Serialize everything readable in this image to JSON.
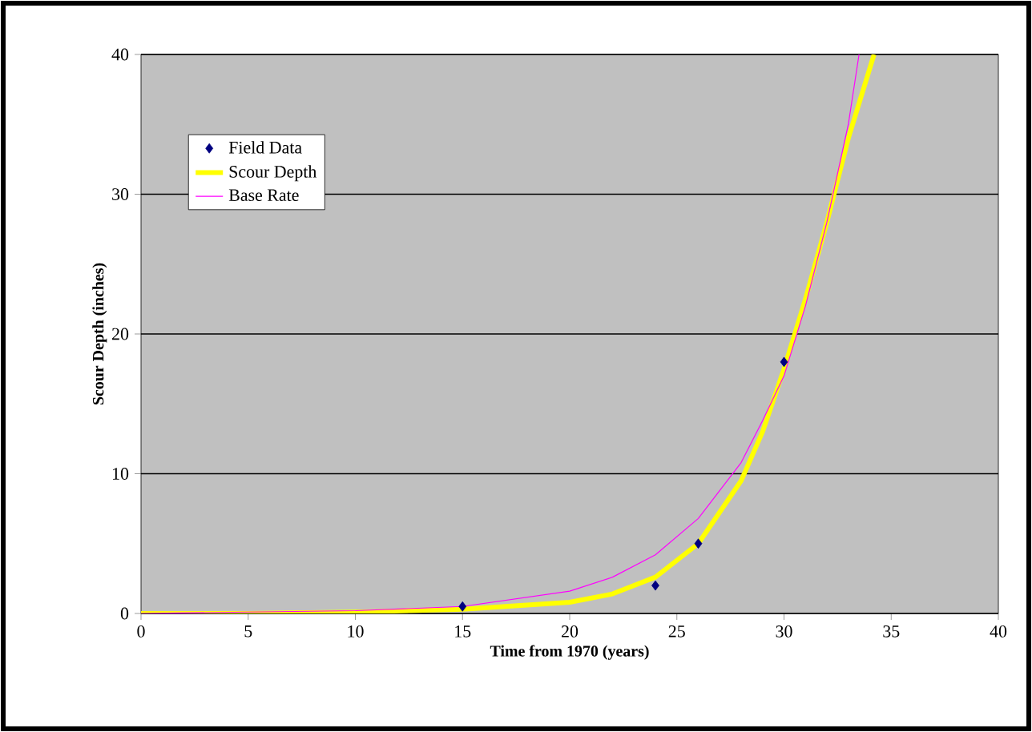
{
  "chart_data": {
    "type": "line",
    "xlabel": "Time from 1970 (years)",
    "ylabel": "Scour Depth (inches)",
    "xlim": [
      0,
      40
    ],
    "ylim": [
      0,
      40
    ],
    "xticks": [
      0,
      5,
      10,
      15,
      20,
      25,
      30,
      35,
      40
    ],
    "yticks": [
      0,
      10,
      20,
      30,
      40
    ],
    "grid": "y",
    "legend": "top left",
    "series": [
      {
        "name": "Field Data",
        "type": "scatter",
        "marker": "diamond",
        "color": "#000080",
        "x": [
          15,
          24,
          26,
          30
        ],
        "values": [
          0.5,
          2,
          5,
          18
        ]
      },
      {
        "name": "Scour Depth",
        "marker": "none",
        "color": "#ffff00",
        "x": [
          0,
          5,
          10,
          15,
          20,
          22,
          24,
          26,
          28,
          29,
          30,
          31,
          32,
          33,
          34.2
        ],
        "values": [
          0,
          0,
          0.1,
          0.3,
          0.8,
          1.4,
          2.6,
          5,
          9.5,
          13,
          17.5,
          22.5,
          28,
          34,
          40
        ]
      },
      {
        "name": "Base Rate",
        "marker": "none",
        "color": "#ff00ff",
        "x": [
          0,
          5,
          10,
          15,
          20,
          22,
          24,
          26,
          28,
          29,
          30,
          31,
          32,
          33,
          33.5
        ],
        "values": [
          0,
          0.1,
          0.2,
          0.5,
          1.6,
          2.6,
          4.2,
          6.8,
          10.8,
          13.8,
          17,
          22,
          28,
          35,
          40
        ]
      }
    ]
  }
}
